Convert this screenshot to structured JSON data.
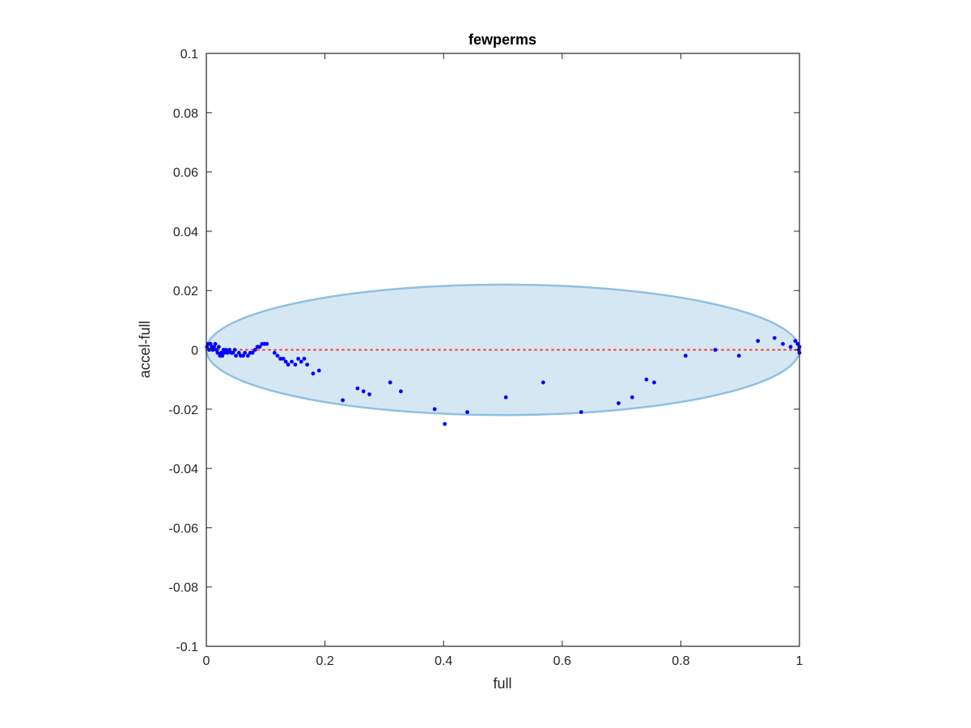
{
  "chart_data": {
    "type": "scatter",
    "title": "fewperms",
    "xlabel": "full",
    "ylabel": "accel-full",
    "xlim": [
      0,
      1
    ],
    "ylim": [
      -0.1,
      0.1
    ],
    "x_ticks": [
      0,
      0.2,
      0.4,
      0.6,
      0.8,
      1
    ],
    "x_tick_labels": [
      "0",
      "0.2",
      "0.4",
      "0.6",
      "0.8",
      "1"
    ],
    "y_ticks": [
      0.1,
      0.08,
      0.06,
      0.04,
      0.02,
      0,
      -0.02,
      -0.04,
      -0.06,
      -0.08,
      -0.1
    ],
    "y_tick_labels": [
      "0.1",
      "0.08",
      "0.06",
      "0.04",
      "0.02",
      "0",
      "-0.02",
      "-0.04",
      "-0.06",
      "-0.08",
      "-0.1"
    ],
    "grid": false,
    "box": true,
    "reference_line": {
      "y": 0,
      "style": "dotted",
      "color": "#ff3b30"
    },
    "ellipse": {
      "cx": 0.5,
      "cy": 0,
      "rx": 0.5,
      "ry": 0.022,
      "fill": "#d6e7f4",
      "stroke": "#8fc0e2"
    },
    "series": [
      {
        "marker": "dot",
        "color": "#0000ff",
        "points": [
          [
            0.001,
            0.001
          ],
          [
            0.003,
            0.002
          ],
          [
            0.005,
            0.0
          ],
          [
            0.007,
            0.002
          ],
          [
            0.009,
            0.001
          ],
          [
            0.011,
            0.0
          ],
          [
            0.013,
            0.001
          ],
          [
            0.015,
            0.002
          ],
          [
            0.017,
            0.0
          ],
          [
            0.019,
            -0.001
          ],
          [
            0.021,
            0.001
          ],
          [
            0.023,
            -0.002
          ],
          [
            0.025,
            -0.001
          ],
          [
            0.027,
            -0.002
          ],
          [
            0.029,
            0.0
          ],
          [
            0.031,
            -0.001
          ],
          [
            0.033,
            0.0
          ],
          [
            0.036,
            -0.001
          ],
          [
            0.039,
            0.0
          ],
          [
            0.042,
            -0.001
          ],
          [
            0.045,
            -0.001
          ],
          [
            0.048,
            0.0
          ],
          [
            0.05,
            -0.002
          ],
          [
            0.055,
            -0.001
          ],
          [
            0.058,
            -0.002
          ],
          [
            0.062,
            -0.002
          ],
          [
            0.065,
            -0.001
          ],
          [
            0.07,
            -0.002
          ],
          [
            0.074,
            -0.001
          ],
          [
            0.078,
            -0.001
          ],
          [
            0.082,
            0.0
          ],
          [
            0.086,
            0.001
          ],
          [
            0.09,
            0.001
          ],
          [
            0.094,
            0.002
          ],
          [
            0.098,
            0.002
          ],
          [
            0.102,
            0.002
          ],
          [
            0.115,
            -0.001
          ],
          [
            0.12,
            -0.002
          ],
          [
            0.125,
            -0.003
          ],
          [
            0.13,
            -0.003
          ],
          [
            0.134,
            -0.004
          ],
          [
            0.138,
            -0.005
          ],
          [
            0.144,
            -0.004
          ],
          [
            0.15,
            -0.005
          ],
          [
            0.155,
            -0.003
          ],
          [
            0.16,
            -0.004
          ],
          [
            0.165,
            -0.003
          ],
          [
            0.17,
            -0.005
          ],
          [
            0.18,
            -0.008
          ],
          [
            0.19,
            -0.007
          ],
          [
            0.23,
            -0.017
          ],
          [
            0.255,
            -0.013
          ],
          [
            0.265,
            -0.014
          ],
          [
            0.275,
            -0.015
          ],
          [
            0.31,
            -0.011
          ],
          [
            0.328,
            -0.014
          ],
          [
            0.385,
            -0.02
          ],
          [
            0.402,
            -0.025
          ],
          [
            0.44,
            -0.021
          ],
          [
            0.505,
            -0.016
          ],
          [
            0.568,
            -0.011
          ],
          [
            0.632,
            -0.021
          ],
          [
            0.695,
            -0.018
          ],
          [
            0.718,
            -0.016
          ],
          [
            0.742,
            -0.01
          ],
          [
            0.755,
            -0.011
          ],
          [
            0.808,
            -0.002
          ],
          [
            0.858,
            0.0
          ],
          [
            0.898,
            -0.002
          ],
          [
            0.93,
            0.003
          ],
          [
            0.958,
            0.004
          ],
          [
            0.972,
            0.002
          ],
          [
            0.985,
            0.001
          ],
          [
            0.993,
            0.003
          ],
          [
            0.997,
            0.002
          ],
          [
            0.999,
            0.0
          ],
          [
            1.0,
            0.001
          ],
          [
            1.0,
            -0.001
          ]
        ]
      }
    ]
  }
}
